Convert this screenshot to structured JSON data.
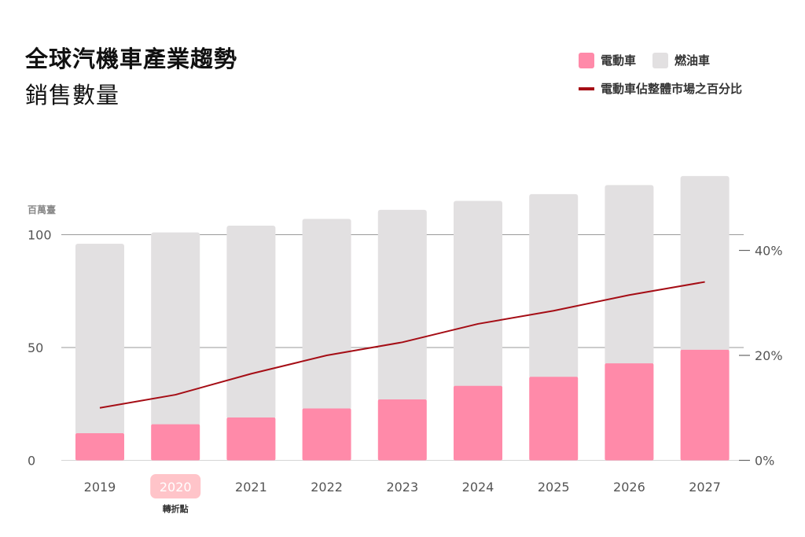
{
  "title": "全球汽機車產業趨勢",
  "subtitle": "銷售數量",
  "legend": {
    "ev": "電動車",
    "ice": "燃油車",
    "share": "電動車佔整體市場之百分比"
  },
  "colors": {
    "ev": "#ff8aa9",
    "ice": "#e2e0e1",
    "share": "#a50d15",
    "highlight_bg": "#ffc4c9",
    "grid": "#9a9a9a",
    "axis_text": "#555555"
  },
  "chart_data": {
    "type": "bar",
    "stacked": true,
    "categories": [
      "2019",
      "2020",
      "2021",
      "2022",
      "2023",
      "2024",
      "2025",
      "2026",
      "2027"
    ],
    "highlight": {
      "category": "2020",
      "label": "轉折點"
    },
    "series": [
      {
        "name": "電動車",
        "values": [
          12,
          16,
          19,
          23,
          27,
          33,
          37,
          43,
          49
        ]
      },
      {
        "name": "燃油車",
        "values": [
          84,
          85,
          85,
          84,
          84,
          82,
          81,
          79,
          77
        ]
      },
      {
        "name": "電動車佔整體市場之百分比",
        "axis": "right",
        "values": [
          10,
          12.5,
          16.5,
          20,
          22.5,
          26,
          28.5,
          31.5,
          34
        ]
      }
    ],
    "ylabel": "百萬臺",
    "ylim": [
      0,
      100
    ],
    "yticks": [
      "0",
      "50",
      "100"
    ],
    "y2lim": [
      0,
      40
    ],
    "y2ticks": [
      "0%",
      "20%",
      "40%"
    ],
    "grid": true
  }
}
